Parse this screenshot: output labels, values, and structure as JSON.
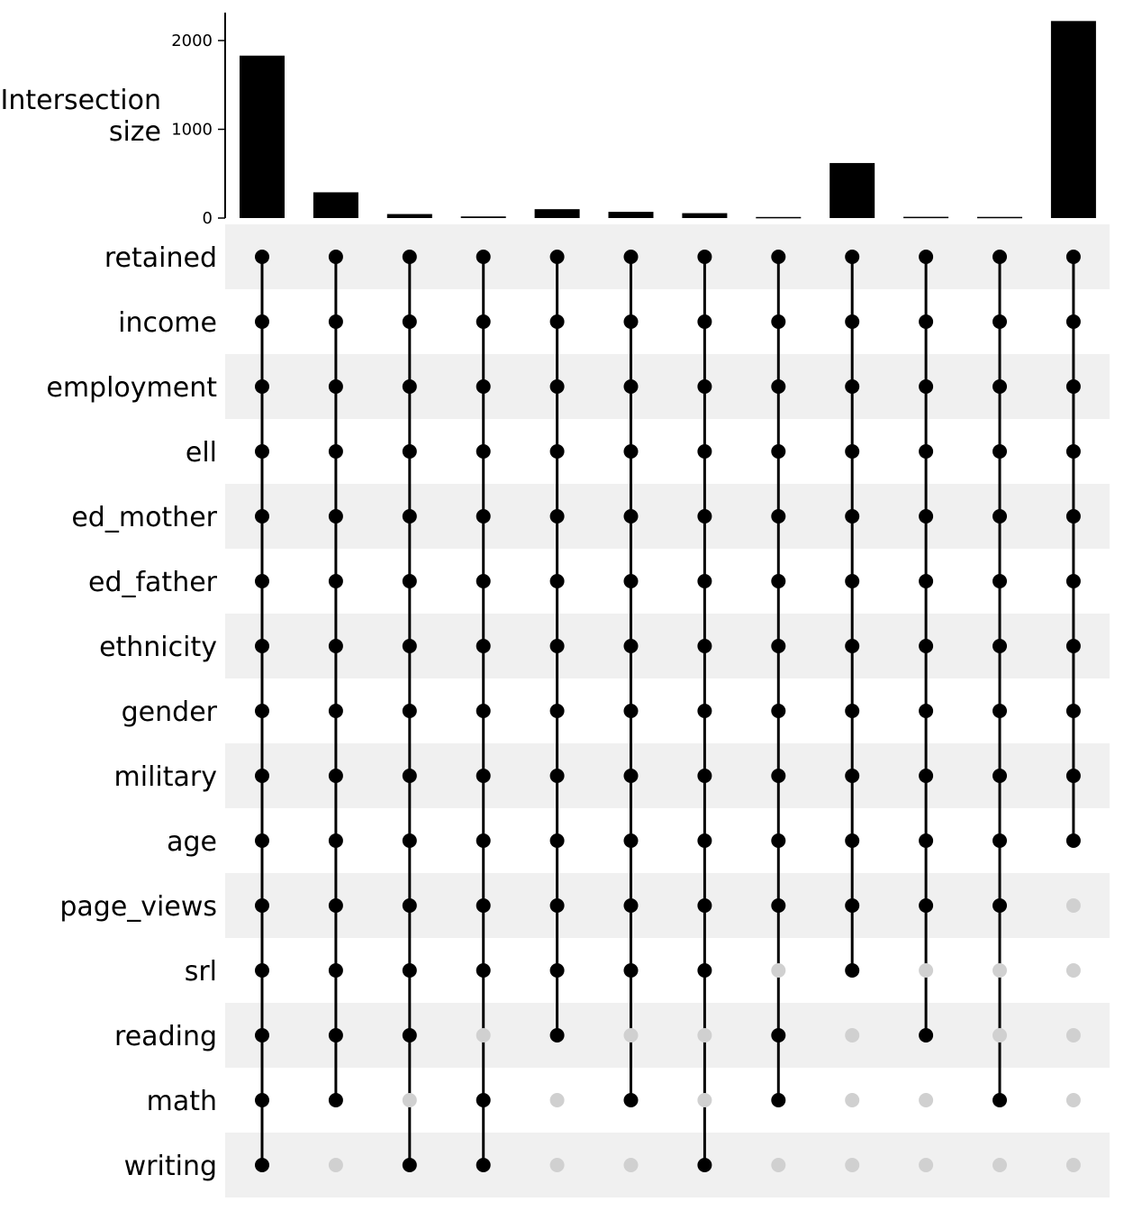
{
  "chart_data": {
    "type": "upset",
    "ylabel_lines": [
      "Intersection",
      "size"
    ],
    "yticks": [
      0,
      1000,
      2000
    ],
    "ylim": [
      0,
      2300
    ],
    "sets": [
      "retained",
      "income",
      "employment",
      "ell",
      "ed_mother",
      "ed_father",
      "ethnicity",
      "gender",
      "military",
      "age",
      "page_views",
      "srl",
      "reading",
      "math",
      "writing"
    ],
    "intersections": [
      {
        "size": 1830,
        "missing": []
      },
      {
        "size": 290,
        "missing": [
          "writing"
        ]
      },
      {
        "size": 45,
        "missing": [
          "math"
        ]
      },
      {
        "size": 18,
        "missing": [
          "reading"
        ]
      },
      {
        "size": 100,
        "missing": [
          "math",
          "writing"
        ]
      },
      {
        "size": 70,
        "missing": [
          "reading",
          "writing"
        ]
      },
      {
        "size": 55,
        "missing": [
          "reading",
          "math"
        ]
      },
      {
        "size": 12,
        "missing": [
          "srl",
          "writing"
        ]
      },
      {
        "size": 620,
        "missing": [
          "reading",
          "math",
          "writing"
        ]
      },
      {
        "size": 14,
        "missing": [
          "srl",
          "math",
          "writing"
        ]
      },
      {
        "size": 13,
        "missing": [
          "srl",
          "reading",
          "writing"
        ]
      },
      {
        "size": 2220,
        "missing": [
          "page_views",
          "srl",
          "reading",
          "math",
          "writing"
        ]
      }
    ],
    "colors": {
      "active": "#000000",
      "inactive": "#d0d0d0",
      "stripe": "#f0f0f0",
      "bar": "#000000"
    },
    "grid": false
  }
}
